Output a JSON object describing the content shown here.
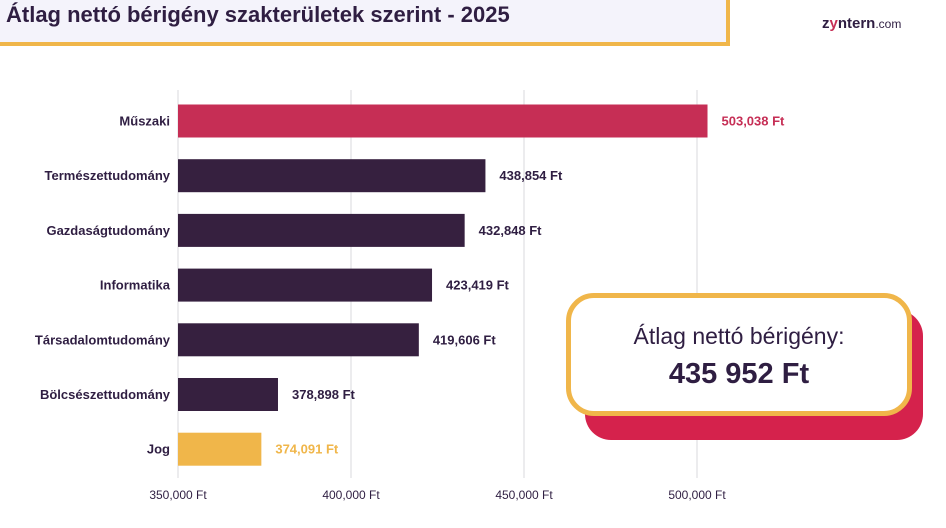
{
  "header": {
    "title": "Átlag nettó bérigény szakterületek szerint - 2025",
    "logo_prefix": "z",
    "logo_y": "y",
    "logo_rest": "ntern",
    "logo_domain": ".com"
  },
  "callout": {
    "label": "Átlag nettó bérigény:",
    "value": "435 952 Ft"
  },
  "chart_data": {
    "type": "bar",
    "orientation": "horizontal",
    "title": "Átlag nettó bérigény szakterületek szerint - 2025",
    "categories": [
      "Műszaki",
      "Természettudomány",
      "Gazdaságtudomány",
      "Informatika",
      "Társadalomtudomány",
      "Bölcsészettudomány",
      "Jog"
    ],
    "values": [
      503038,
      438854,
      432848,
      423419,
      419606,
      378898,
      374091
    ],
    "value_labels": [
      "503,038 Ft",
      "438,854 Ft",
      "432,848 Ft",
      "423,419 Ft",
      "419,606 Ft",
      "378,898 Ft",
      "374,091 Ft"
    ],
    "bar_colors": [
      "#c62e55",
      "#36203f",
      "#36203f",
      "#36203f",
      "#36203f",
      "#36203f",
      "#f0b64a"
    ],
    "label_colors": [
      "#c62e55",
      "#2f1e42",
      "#2f1e42",
      "#2f1e42",
      "#2f1e42",
      "#2f1e42",
      "#f0b64a"
    ],
    "xlim": [
      350000,
      500000
    ],
    "ticks": [
      350000,
      400000,
      450000,
      500000
    ],
    "tick_labels": [
      "350,000 Ft",
      "400,000 Ft",
      "450,000 Ft",
      "500,000 Ft"
    ],
    "grid": true,
    "xlabel": "",
    "ylabel": ""
  }
}
